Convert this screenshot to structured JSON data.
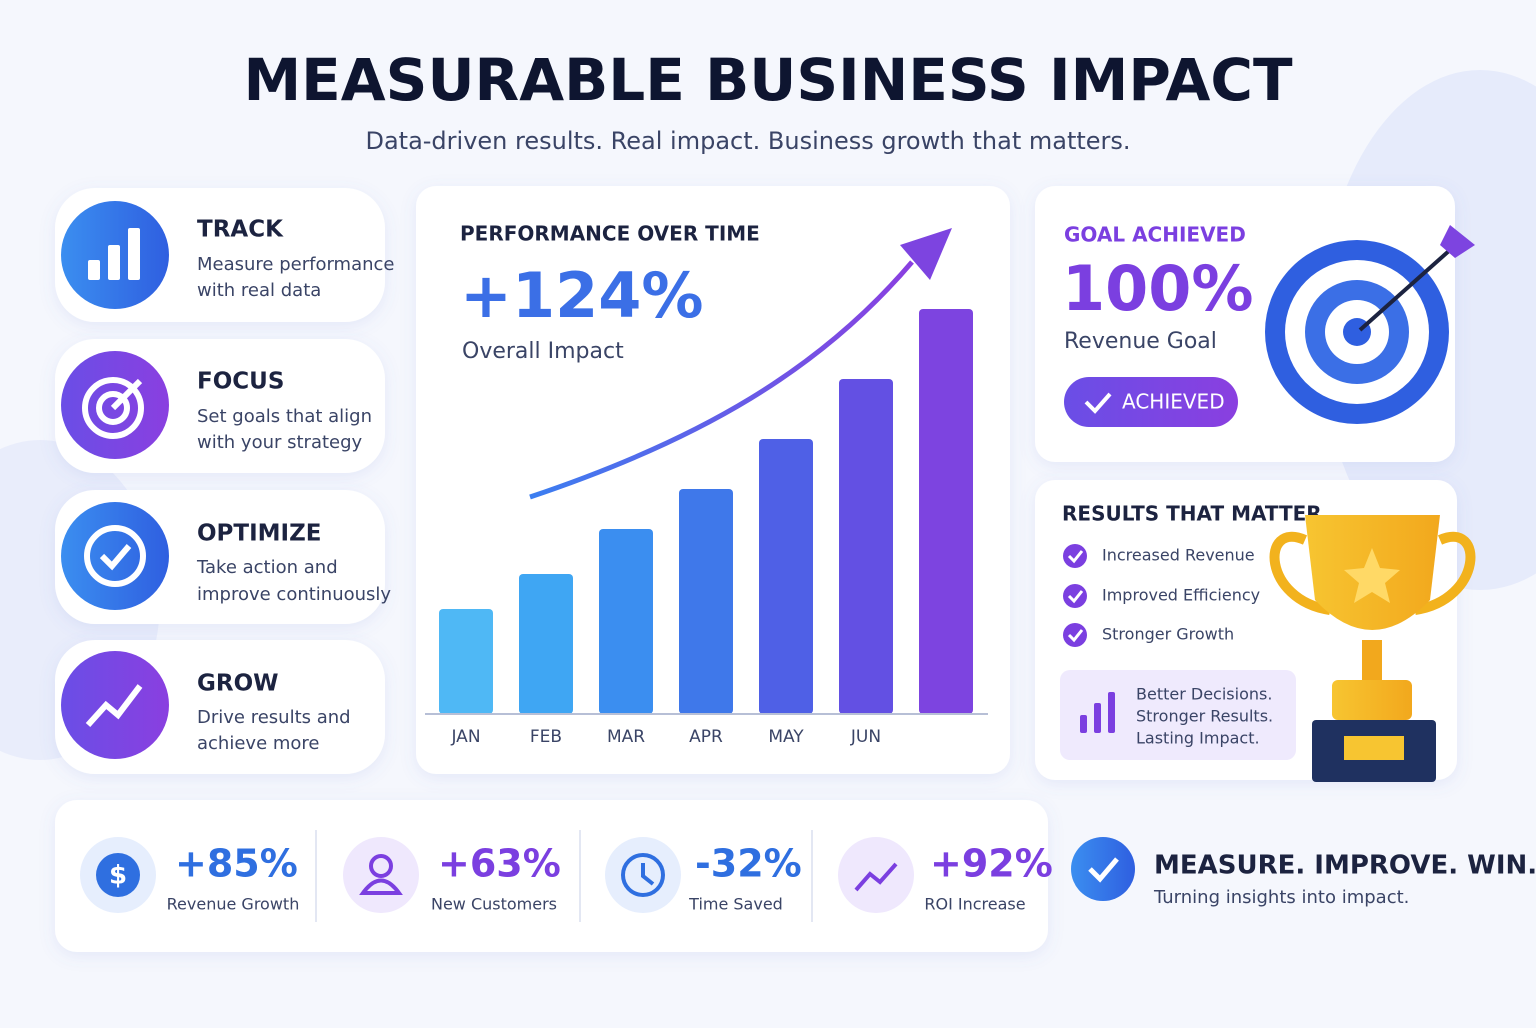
{
  "header": {
    "title": "MEASURABLE BUSINESS IMPACT",
    "subtitle": "Data-driven results. Real impact. Business growth that matters."
  },
  "pillars": [
    {
      "title": "TRACK",
      "lines": [
        "Measure performance",
        "with real data"
      ]
    },
    {
      "title": "FOCUS",
      "lines": [
        "Set goals that align",
        "with your strategy"
      ]
    },
    {
      "title": "OPTIMIZE",
      "lines": [
        "Take action and",
        "improve continuously"
      ]
    },
    {
      "title": "GROW",
      "lines": [
        "Drive results and",
        "achieve more"
      ]
    }
  ],
  "chart_data": {
    "type": "bar",
    "title": "PERFORMANCE OVER TIME",
    "headline": "+124%",
    "headline_label": "Overall Impact",
    "categories": [
      "JAN",
      "FEB",
      "MAR",
      "APR",
      "MAY",
      "JUN",
      null
    ],
    "values": [
      21,
      28,
      37,
      45,
      55,
      67,
      81
    ],
    "colors": [
      "#4fb8f5",
      "#3fa6f3",
      "#3b8ef0",
      "#3f78ea",
      "#4f60e6",
      "#6350e3",
      "#7d44e0"
    ],
    "ylim": [
      0,
      100
    ]
  },
  "goal": {
    "title": "GOAL ACHIEVED",
    "value": "100%",
    "label": "Revenue Goal",
    "badge": "ACHIEVED"
  },
  "results": {
    "title": "RESULTS THAT MATTER",
    "items": [
      "Increased Revenue",
      "Improved Efficiency",
      "Stronger Growth"
    ],
    "note_lines": [
      "Better Decisions.",
      "Stronger Results.",
      "Lasting Impact."
    ]
  },
  "stats": [
    {
      "value": "+85%",
      "label": "Revenue Growth"
    },
    {
      "value": "+63%",
      "label": "New Customers"
    },
    {
      "value": "-32%",
      "label": "Time Saved"
    },
    {
      "value": "+92%",
      "label": "ROI Increase"
    }
  ],
  "tagline": {
    "title": "MEASURE. IMPROVE. WIN.",
    "text": "Turning insights into impact."
  }
}
